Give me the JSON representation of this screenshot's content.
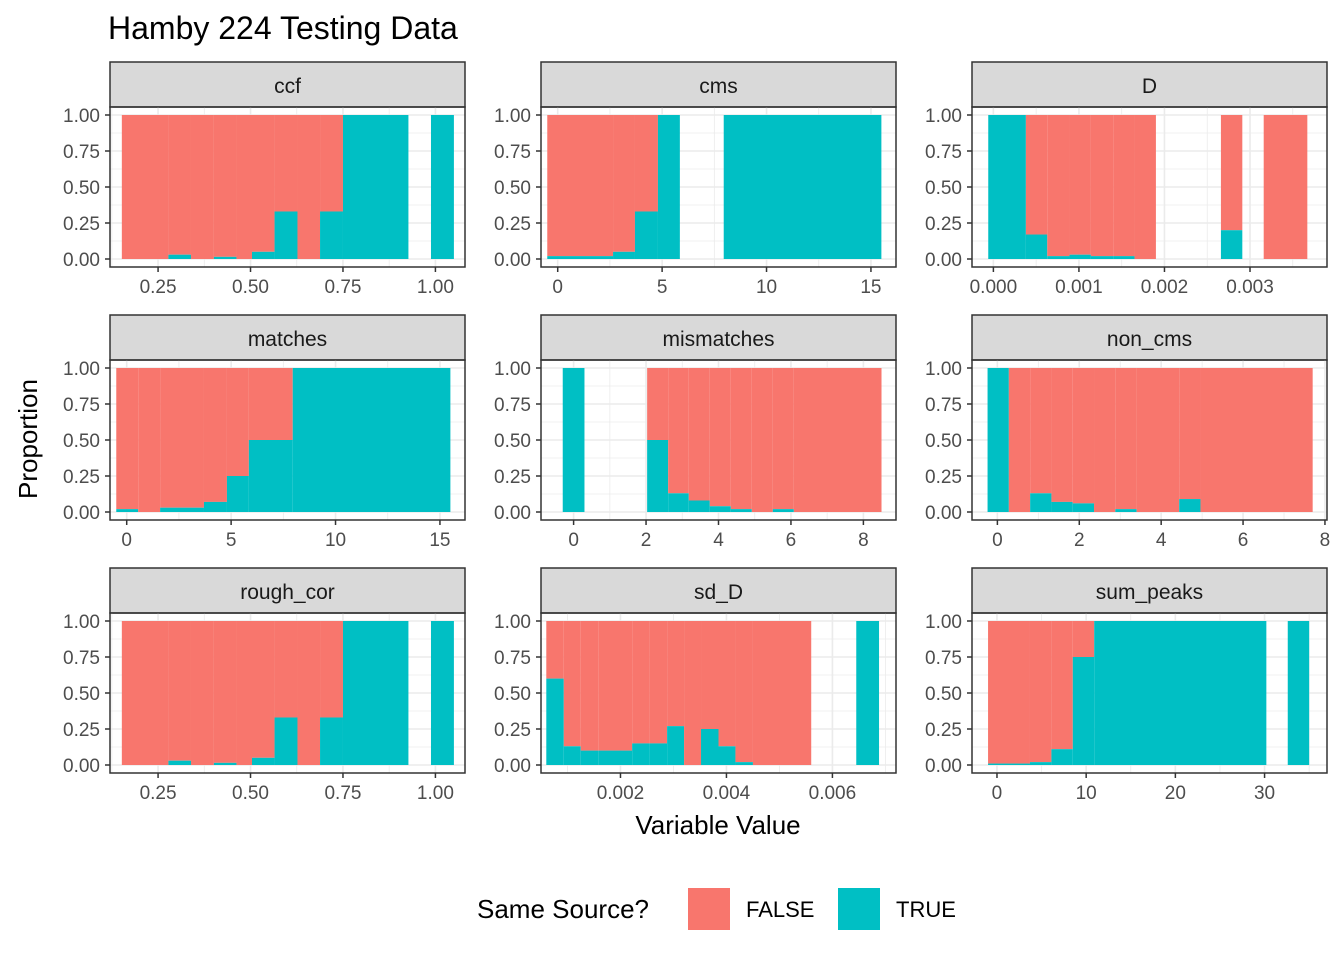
{
  "title": "Hamby 224 Testing Data",
  "xlabel": "Variable Value",
  "ylabel": "Proportion",
  "legend": {
    "title": "Same Source?",
    "position": "bottom",
    "items": [
      {
        "label": "FALSE",
        "color": "#F8766D"
      },
      {
        "label": "TRUE",
        "color": "#00BFC4"
      }
    ]
  },
  "colors": {
    "FALSE": "#F8766D",
    "TRUE": "#00BFC4",
    "strip": "#D9D9D9",
    "grid": "#EBEBEB",
    "border": "#333333"
  },
  "chart_data": [
    {
      "type": "bar",
      "facet": "ccf",
      "xlim": [
        0.12,
        1.08
      ],
      "ylim": [
        0,
        1
      ],
      "xticks": [
        0.25,
        0.5,
        0.75,
        1.0
      ],
      "xtick_labels": [
        "0.25",
        "0.50",
        "0.75",
        "1.00"
      ],
      "yticks": [
        0,
        0.25,
        0.5,
        0.75,
        1
      ],
      "ytick_labels": [
        "0.00",
        "0.25",
        "0.50",
        "0.75",
        "1.00"
      ],
      "bins": [
        {
          "x0": 0.152,
          "x1": 0.278,
          "true": 0.0
        },
        {
          "x0": 0.278,
          "x1": 0.339,
          "true": 0.03
        },
        {
          "x0": 0.339,
          "x1": 0.401,
          "true": 0.0
        },
        {
          "x0": 0.401,
          "x1": 0.462,
          "true": 0.015
        },
        {
          "x0": 0.462,
          "x1": 0.504,
          "true": 0.0
        },
        {
          "x0": 0.504,
          "x1": 0.565,
          "true": 0.05
        },
        {
          "x0": 0.565,
          "x1": 0.627,
          "true": 0.33
        },
        {
          "x0": 0.627,
          "x1": 0.688,
          "true": 0.0
        },
        {
          "x0": 0.688,
          "x1": 0.75,
          "true": 0.33
        },
        {
          "x0": 0.75,
          "x1": 0.927,
          "true": 1.0
        },
        {
          "x0": 0.988,
          "x1": 1.05,
          "true": 1.0
        }
      ]
    },
    {
      "type": "bar",
      "facet": "cms",
      "xlim": [
        -0.8,
        16.2
      ],
      "ylim": [
        0,
        1
      ],
      "xticks": [
        0,
        5,
        10,
        15
      ],
      "xtick_labels": [
        "0",
        "5",
        "10",
        "15"
      ],
      "yticks": [
        0,
        0.25,
        0.5,
        0.75,
        1
      ],
      "ytick_labels": [
        "0.00",
        "0.25",
        "0.50",
        "0.75",
        "1.00"
      ],
      "bins": [
        {
          "x0": -0.5,
          "x1": 2.65,
          "true": 0.02
        },
        {
          "x0": 2.65,
          "x1": 3.7,
          "true": 0.05
        },
        {
          "x0": 3.7,
          "x1": 4.8,
          "true": 0.33
        },
        {
          "x0": 4.8,
          "x1": 5.85,
          "true": 1.0
        },
        {
          "x0": 7.95,
          "x1": 15.5,
          "true": 1.0
        }
      ]
    },
    {
      "type": "bar",
      "facet": "D",
      "xlim": [
        -0.00025,
        0.0039
      ],
      "ylim": [
        0,
        1
      ],
      "xticks": [
        0,
        0.001,
        0.002,
        0.003
      ],
      "xtick_labels": [
        "0.000",
        "0.001",
        "0.002",
        "0.003"
      ],
      "yticks": [
        0,
        0.25,
        0.5,
        0.75,
        1
      ],
      "ytick_labels": [
        "0.00",
        "0.25",
        "0.50",
        "0.75",
        "1.00"
      ],
      "bins": [
        {
          "x0": -6e-05,
          "x1": 0.00038,
          "true": 1.0
        },
        {
          "x0": 0.00038,
          "x1": 0.00063,
          "true": 0.17
        },
        {
          "x0": 0.00063,
          "x1": 0.00089,
          "true": 0.02
        },
        {
          "x0": 0.00089,
          "x1": 0.00114,
          "true": 0.03
        },
        {
          "x0": 0.00114,
          "x1": 0.0014,
          "true": 0.02
        },
        {
          "x0": 0.0014,
          "x1": 0.00165,
          "true": 0.02
        },
        {
          "x0": 0.00165,
          "x1": 0.0019,
          "true": 0.0
        },
        {
          "x0": 0.00266,
          "x1": 0.00291,
          "true": 0.2
        },
        {
          "x0": 0.00316,
          "x1": 0.00367,
          "true": 0.0
        }
      ]
    },
    {
      "type": "bar",
      "facet": "matches",
      "xlim": [
        -0.8,
        16.2
      ],
      "ylim": [
        0,
        1
      ],
      "xticks": [
        0,
        5,
        10,
        15
      ],
      "xtick_labels": [
        "0",
        "5",
        "10",
        "15"
      ],
      "yticks": [
        0,
        0.25,
        0.5,
        0.75,
        1
      ],
      "ytick_labels": [
        "0.00",
        "0.25",
        "0.50",
        "0.75",
        "1.00"
      ],
      "bins": [
        {
          "x0": -0.5,
          "x1": 0.55,
          "true": 0.02
        },
        {
          "x0": 0.55,
          "x1": 1.6,
          "true": 0.0
        },
        {
          "x0": 1.6,
          "x1": 3.7,
          "true": 0.03
        },
        {
          "x0": 3.7,
          "x1": 4.8,
          "true": 0.07
        },
        {
          "x0": 4.8,
          "x1": 5.85,
          "true": 0.25
        },
        {
          "x0": 5.85,
          "x1": 7.95,
          "true": 0.5
        },
        {
          "x0": 7.95,
          "x1": 15.5,
          "true": 1.0
        }
      ]
    },
    {
      "type": "bar",
      "facet": "mismatches",
      "xlim": [
        -0.9,
        8.9
      ],
      "ylim": [
        0,
        1
      ],
      "xticks": [
        0,
        2,
        4,
        6,
        8
      ],
      "xtick_labels": [
        "0",
        "2",
        "4",
        "6",
        "8"
      ],
      "yticks": [
        0,
        0.25,
        0.5,
        0.75,
        1
      ],
      "ytick_labels": [
        "0.00",
        "0.25",
        "0.50",
        "0.75",
        "1.00"
      ],
      "bins": [
        {
          "x0": -0.3,
          "x1": 0.3,
          "true": 1.0
        },
        {
          "x0": 2.03,
          "x1": 2.61,
          "true": 0.5
        },
        {
          "x0": 2.61,
          "x1": 3.18,
          "true": 0.13
        },
        {
          "x0": 3.18,
          "x1": 3.76,
          "true": 0.08
        },
        {
          "x0": 3.76,
          "x1": 4.34,
          "true": 0.04
        },
        {
          "x0": 4.34,
          "x1": 4.92,
          "true": 0.02
        },
        {
          "x0": 4.92,
          "x1": 5.5,
          "true": 0.0
        },
        {
          "x0": 5.5,
          "x1": 6.08,
          "true": 0.02
        },
        {
          "x0": 6.08,
          "x1": 8.5,
          "true": 0.0
        }
      ]
    },
    {
      "type": "bar",
      "facet": "non_cms",
      "xlim": [
        -0.62,
        8.05
      ],
      "ylim": [
        0,
        1
      ],
      "xticks": [
        0,
        2,
        4,
        6,
        8
      ],
      "xtick_labels": [
        "0",
        "2",
        "4",
        "6",
        "8"
      ],
      "yticks": [
        0,
        0.25,
        0.5,
        0.75,
        1
      ],
      "ytick_labels": [
        "0.00",
        "0.25",
        "0.50",
        "0.75",
        "1.00"
      ],
      "bins": [
        {
          "x0": -0.24,
          "x1": 0.28,
          "true": 1.0
        },
        {
          "x0": 0.28,
          "x1": 0.8,
          "true": 0.0
        },
        {
          "x0": 0.8,
          "x1": 1.32,
          "true": 0.13
        },
        {
          "x0": 1.32,
          "x1": 1.84,
          "true": 0.07
        },
        {
          "x0": 1.84,
          "x1": 2.36,
          "true": 0.06
        },
        {
          "x0": 2.36,
          "x1": 2.88,
          "true": 0.0
        },
        {
          "x0": 2.88,
          "x1": 3.4,
          "true": 0.02
        },
        {
          "x0": 3.4,
          "x1": 4.44,
          "true": 0.0
        },
        {
          "x0": 4.44,
          "x1": 4.96,
          "true": 0.09
        },
        {
          "x0": 4.96,
          "x1": 7.7,
          "true": 0.0
        }
      ]
    },
    {
      "type": "bar",
      "facet": "rough_cor",
      "xlim": [
        0.12,
        1.08
      ],
      "ylim": [
        0,
        1
      ],
      "xticks": [
        0.25,
        0.5,
        0.75,
        1.0
      ],
      "xtick_labels": [
        "0.25",
        "0.50",
        "0.75",
        "1.00"
      ],
      "yticks": [
        0,
        0.25,
        0.5,
        0.75,
        1
      ],
      "ytick_labels": [
        "0.00",
        "0.25",
        "0.50",
        "0.75",
        "1.00"
      ],
      "bins": [
        {
          "x0": 0.152,
          "x1": 0.278,
          "true": 0.0
        },
        {
          "x0": 0.278,
          "x1": 0.339,
          "true": 0.03
        },
        {
          "x0": 0.339,
          "x1": 0.401,
          "true": 0.0
        },
        {
          "x0": 0.401,
          "x1": 0.462,
          "true": 0.015
        },
        {
          "x0": 0.462,
          "x1": 0.504,
          "true": 0.0
        },
        {
          "x0": 0.504,
          "x1": 0.565,
          "true": 0.05
        },
        {
          "x0": 0.565,
          "x1": 0.627,
          "true": 0.33
        },
        {
          "x0": 0.627,
          "x1": 0.688,
          "true": 0.0
        },
        {
          "x0": 0.688,
          "x1": 0.75,
          "true": 0.33
        },
        {
          "x0": 0.75,
          "x1": 0.927,
          "true": 1.0
        },
        {
          "x0": 0.988,
          "x1": 1.05,
          "true": 1.0
        }
      ]
    },
    {
      "type": "bar",
      "facet": "sd_D",
      "xlim": [
        0.0005,
        0.0072
      ],
      "ylim": [
        0,
        1
      ],
      "xticks": [
        0.002,
        0.004,
        0.006
      ],
      "xtick_labels": [
        "0.002",
        "0.004",
        "0.006"
      ],
      "yticks": [
        0,
        0.25,
        0.5,
        0.75,
        1
      ],
      "ytick_labels": [
        "0.00",
        "0.25",
        "0.50",
        "0.75",
        "1.00"
      ],
      "bins": [
        {
          "x0": 0.0006,
          "x1": 0.00093,
          "true": 0.6
        },
        {
          "x0": 0.00093,
          "x1": 0.00125,
          "true": 0.13
        },
        {
          "x0": 0.00125,
          "x1": 0.00158,
          "true": 0.1
        },
        {
          "x0": 0.00158,
          "x1": 0.00222,
          "true": 0.1
        },
        {
          "x0": 0.00222,
          "x1": 0.00255,
          "true": 0.15
        },
        {
          "x0": 0.00255,
          "x1": 0.00288,
          "true": 0.15
        },
        {
          "x0": 0.00288,
          "x1": 0.0032,
          "true": 0.27
        },
        {
          "x0": 0.0032,
          "x1": 0.00352,
          "true": 0.0
        },
        {
          "x0": 0.00352,
          "x1": 0.00385,
          "true": 0.25
        },
        {
          "x0": 0.00385,
          "x1": 0.00417,
          "true": 0.13
        },
        {
          "x0": 0.00417,
          "x1": 0.0045,
          "true": 0.02
        },
        {
          "x0": 0.0045,
          "x1": 0.0056,
          "true": 0.0
        },
        {
          "x0": 0.00645,
          "x1": 0.00688,
          "true": 1.0
        }
      ]
    },
    {
      "type": "bar",
      "facet": "sum_peaks",
      "xlim": [
        -2.8,
        37.0
      ],
      "ylim": [
        0,
        1
      ],
      "xticks": [
        0,
        10,
        20,
        30
      ],
      "xtick_labels": [
        "0",
        "10",
        "20",
        "30"
      ],
      "yticks": [
        0,
        0.25,
        0.5,
        0.75,
        1
      ],
      "ytick_labels": [
        "0.00",
        "0.25",
        "0.50",
        "0.75",
        "1.00"
      ],
      "bins": [
        {
          "x0": -1.0,
          "x1": 3.7,
          "true": 0.01
        },
        {
          "x0": 3.7,
          "x1": 6.1,
          "true": 0.02
        },
        {
          "x0": 6.1,
          "x1": 8.5,
          "true": 0.11
        },
        {
          "x0": 8.5,
          "x1": 10.9,
          "true": 0.75
        },
        {
          "x0": 10.9,
          "x1": 30.2,
          "true": 1.0
        },
        {
          "x0": 32.6,
          "x1": 35.0,
          "true": 1.0
        }
      ]
    }
  ]
}
